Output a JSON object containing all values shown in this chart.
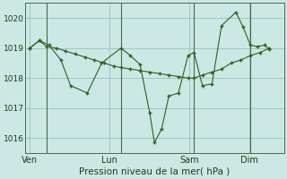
{
  "background_color": "#cce8e5",
  "grid_color": "#9dbfbc",
  "line_color": "#2d6020",
  "xlabel": "Pression niveau de la mer( hPa )",
  "ylim": [
    1015.5,
    1020.5
  ],
  "yticks": [
    1016,
    1017,
    1018,
    1019,
    1020
  ],
  "day_labels": [
    "Ven",
    "Lun",
    "Sam",
    "Dim"
  ],
  "day_positions": [
    0.0,
    0.333,
    0.667,
    0.917
  ],
  "vline_positions": [
    0.07,
    0.38,
    0.685,
    0.92
  ],
  "xmin": 0,
  "xmax": 1,
  "series1_x": [
    0.0,
    0.04,
    0.07,
    0.11,
    0.15,
    0.19,
    0.23,
    0.27,
    0.31,
    0.35,
    0.38,
    0.42,
    0.46,
    0.5,
    0.54,
    0.58,
    0.62,
    0.66,
    0.685,
    0.72,
    0.76,
    0.8,
    0.84,
    0.88,
    0.92,
    0.96,
    1.0
  ],
  "series1_y": [
    1019.0,
    1019.25,
    1019.05,
    1019.0,
    1018.9,
    1018.8,
    1018.7,
    1018.6,
    1018.5,
    1018.4,
    1018.35,
    1018.3,
    1018.25,
    1018.2,
    1018.15,
    1018.1,
    1018.05,
    1018.0,
    1018.0,
    1018.1,
    1018.2,
    1018.3,
    1018.5,
    1018.6,
    1018.75,
    1018.85,
    1019.0
  ],
  "series2_x": [
    0.0,
    0.04,
    0.08,
    0.13,
    0.17,
    0.24,
    0.3,
    0.38,
    0.42,
    0.46,
    0.5,
    0.52,
    0.55,
    0.58,
    0.62,
    0.66,
    0.685,
    0.72,
    0.76,
    0.8,
    0.86,
    0.89,
    0.92,
    0.95,
    0.98,
    1.0
  ],
  "series2_y": [
    1019.0,
    1019.25,
    1019.1,
    1018.6,
    1017.75,
    1017.5,
    1018.5,
    1019.0,
    1018.75,
    1018.45,
    1016.85,
    1015.85,
    1016.3,
    1017.4,
    1017.5,
    1018.75,
    1018.85,
    1017.75,
    1017.8,
    1019.75,
    1020.2,
    1019.7,
    1019.1,
    1019.05,
    1019.1,
    1018.95
  ]
}
